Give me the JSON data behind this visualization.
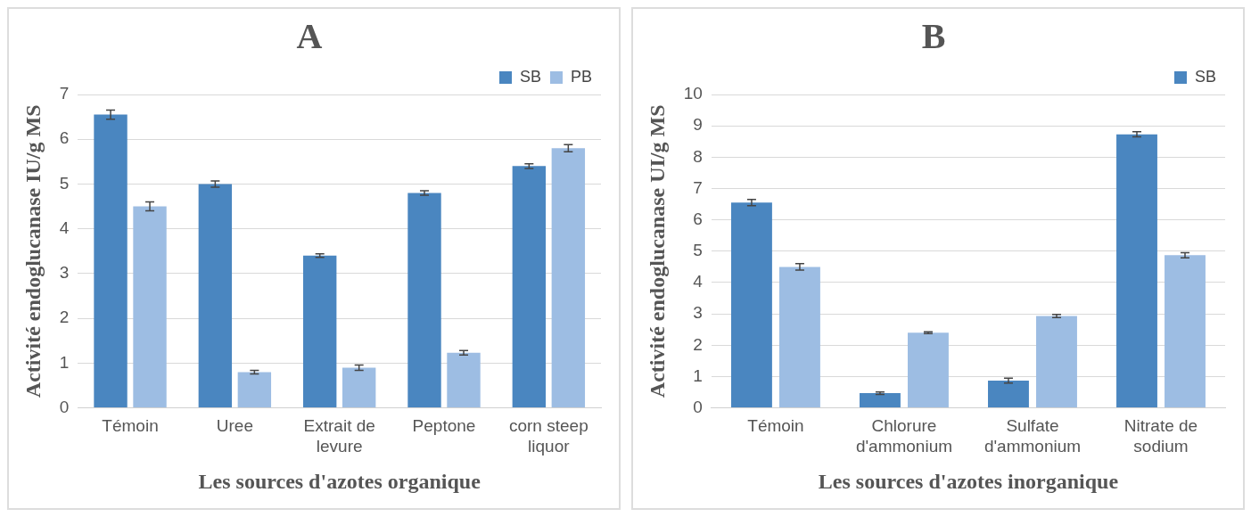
{
  "chart_data": [
    {
      "type": "bar",
      "title": "A",
      "xlabel": "Les sources d'azotes organique",
      "ylabel": "Activité endoglucanase IU/g MS",
      "categories": [
        "Témoin",
        "Uree",
        "Extrait de levure",
        "Peptone",
        "corn steep liquor"
      ],
      "series": [
        {
          "name": "SB",
          "color": "#4a86c0",
          "values": [
            6.55,
            5.0,
            3.4,
            4.8,
            5.4
          ],
          "errors": [
            0.1,
            0.07,
            0.04,
            0.05,
            0.05
          ]
        },
        {
          "name": "PB",
          "color": "#9dbde3",
          "values": [
            4.5,
            0.8,
            0.9,
            1.23,
            5.8
          ],
          "errors": [
            0.1,
            0.04,
            0.06,
            0.05,
            0.08
          ]
        }
      ],
      "ylim": [
        0,
        7
      ],
      "yticks": [
        0,
        1,
        2,
        3,
        4,
        5,
        6,
        7
      ],
      "grid": "y",
      "legend": "top right"
    },
    {
      "type": "bar",
      "title": "B",
      "xlabel": "Les sources d'azotes inorganique",
      "ylabel": "Activité endoglucanase UI/g MS",
      "categories": [
        "Témoin",
        "Chlorure d'ammonium",
        "Sulfate d'ammonium",
        "Nitrate de sodium"
      ],
      "series": [
        {
          "name": "SB",
          "color": "#4a86c0",
          "values": [
            6.55,
            0.47,
            0.87,
            8.73
          ],
          "errors": [
            0.1,
            0.04,
            0.08,
            0.08
          ]
        },
        {
          "color": "#9dbde3",
          "values": [
            4.5,
            2.4,
            2.93,
            4.87
          ],
          "errors": [
            0.1,
            0.03,
            0.05,
            0.08
          ]
        }
      ],
      "ylim": [
        0,
        10
      ],
      "yticks": [
        0,
        1,
        2,
        3,
        4,
        5,
        6,
        7,
        8,
        9,
        10
      ],
      "grid": "y",
      "legend": "top right"
    }
  ]
}
